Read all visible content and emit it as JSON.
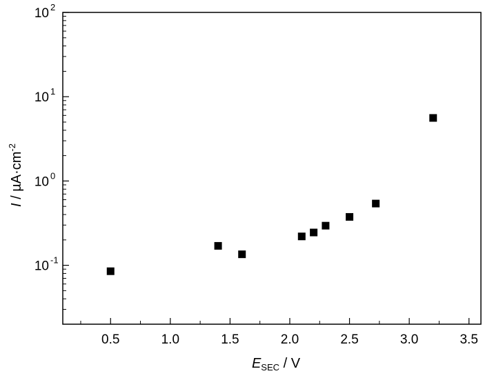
{
  "chart_data": {
    "type": "scatter",
    "xlabel": {
      "main": "E",
      "sub": "SEC",
      "rest": " / V"
    },
    "ylabel": {
      "main": "I",
      "rest": " / µA·cm",
      "sup": "-2"
    },
    "xlim": [
      0.1,
      3.6
    ],
    "ylim": [
      0.02,
      100
    ],
    "yscale": "log",
    "x_ticks": [
      0.5,
      1.0,
      1.5,
      2.0,
      2.5,
      3.0,
      3.5
    ],
    "x_tick_labels": [
      "0.5",
      "1.0",
      "1.5",
      "2.0",
      "2.5",
      "3.0",
      "3.5"
    ],
    "y_ticks": [
      {
        "value": 0.1,
        "base": "10",
        "exp": "-1"
      },
      {
        "value": 1,
        "base": "10",
        "exp": "0"
      },
      {
        "value": 10,
        "base": "10",
        "exp": "1"
      },
      {
        "value": 100,
        "base": "10",
        "exp": "2"
      }
    ],
    "marker": "square",
    "marker_color": "#000000",
    "points": [
      {
        "x": 0.5,
        "y": 0.085
      },
      {
        "x": 1.4,
        "y": 0.17
      },
      {
        "x": 1.6,
        "y": 0.135
      },
      {
        "x": 2.1,
        "y": 0.22
      },
      {
        "x": 2.2,
        "y": 0.245
      },
      {
        "x": 2.3,
        "y": 0.295
      },
      {
        "x": 2.5,
        "y": 0.375
      },
      {
        "x": 2.72,
        "y": 0.54
      },
      {
        "x": 3.2,
        "y": 5.6
      }
    ]
  }
}
